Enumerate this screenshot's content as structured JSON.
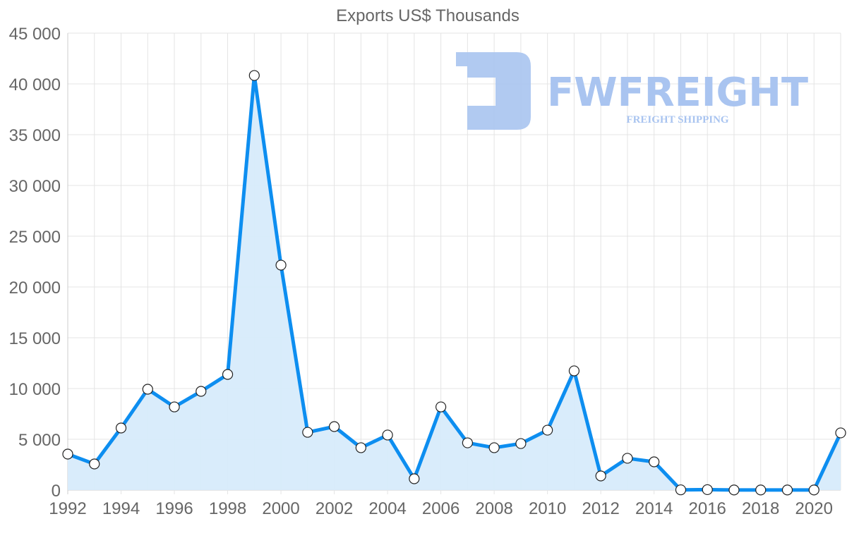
{
  "chart_data": {
    "type": "line",
    "title": "Exports US$ Thousands",
    "xlabel": "",
    "ylabel": "",
    "ylim": [
      0,
      45000
    ],
    "yticks": [
      0,
      5000,
      10000,
      15000,
      20000,
      25000,
      30000,
      35000,
      40000,
      45000
    ],
    "ytick_labels": [
      "0",
      "5 000",
      "10 000",
      "15 000",
      "20 000",
      "25 000",
      "30 000",
      "35 000",
      "40 000",
      "45 000"
    ],
    "xtick_labels": [
      "1992",
      "1994",
      "1996",
      "1998",
      "2000",
      "2002",
      "2004",
      "2006",
      "2008",
      "2010",
      "2012",
      "2014",
      "2016",
      "2018",
      "2020"
    ],
    "grid": true,
    "fill": true,
    "legend": null,
    "x": [
      1992,
      1993,
      1994,
      1995,
      1996,
      1997,
      1998,
      1999,
      2000,
      2001,
      2002,
      2003,
      2004,
      2005,
      2006,
      2007,
      2008,
      2009,
      2010,
      2011,
      2012,
      2013,
      2014,
      2015,
      2016,
      2017,
      2018,
      2019,
      2020,
      2021
    ],
    "series": [
      {
        "name": "Exports US$ Thousands",
        "color": "#0d8ef0",
        "fill_color": "#d7ebfb",
        "values": [
          3540,
          2570,
          6110,
          9930,
          8190,
          9720,
          11390,
          40830,
          22150,
          5690,
          6250,
          4170,
          5420,
          1110,
          8190,
          4650,
          4170,
          4580,
          5900,
          11740,
          1390,
          3130,
          2780,
          20,
          40,
          10,
          10,
          10,
          10,
          5630
        ]
      }
    ]
  },
  "watermark": {
    "brand": "FWFREIGHT",
    "tagline": "FREIGHT SHIPPING",
    "color": "#a9c4f0"
  }
}
